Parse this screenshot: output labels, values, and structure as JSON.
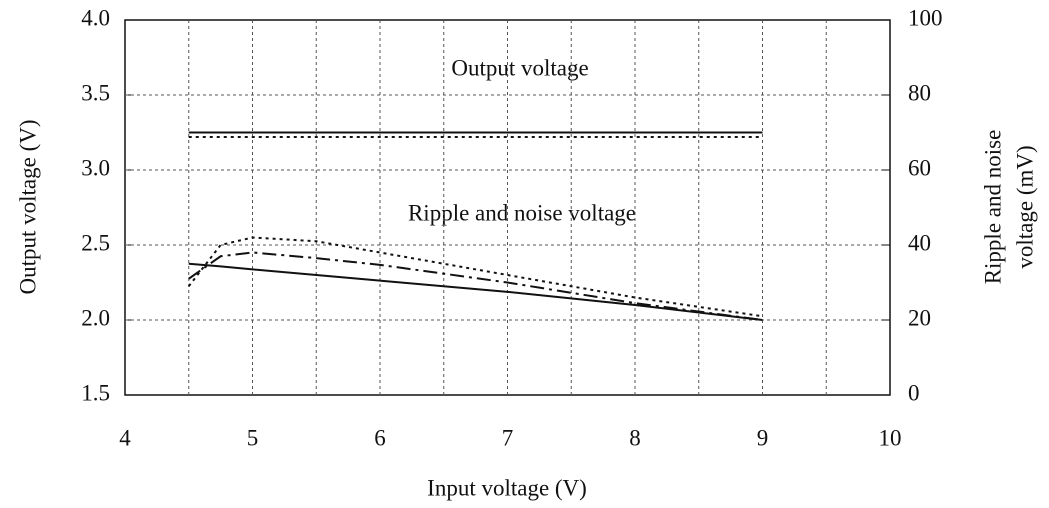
{
  "chart_data": {
    "type": "line",
    "xlabel": "Input voltage (V)",
    "ylabel": "Output voltage (V)",
    "y2label": [
      "Ripple and noise",
      "voltage (mV)"
    ],
    "annotations": [
      "Output voltage",
      "Ripple and noise voltage"
    ],
    "x": [
      4.5,
      4.75,
      5,
      5.5,
      6,
      7,
      8,
      9
    ],
    "xlim": [
      4,
      10
    ],
    "xticks": [
      4,
      5,
      6,
      7,
      8,
      9,
      10
    ],
    "xminorticks": [
      4.5,
      5.5,
      6.5,
      7.5,
      8.5,
      9.5
    ],
    "ylim": [
      1.5,
      4.0
    ],
    "yticks": [
      1.5,
      {
        "value": 2,
        "label": "2.0"
      },
      2.5,
      {
        "value": 3,
        "label": "3.0"
      },
      3.5,
      {
        "value": 4,
        "label": "4.0"
      }
    ],
    "y2lim": [
      0,
      100
    ],
    "y2ticks": [
      0,
      20,
      40,
      60,
      80,
      100
    ],
    "grid": true,
    "series": [
      {
        "color": "#111111",
        "dash": "solid",
        "values": [
          3.25,
          3.25,
          3.25,
          3.25,
          3.25,
          3.25,
          3.25,
          3.25
        ]
      },
      {
        "color": "#111111",
        "dash": "dotted",
        "values": [
          3.22,
          3.22,
          3.22,
          3.22,
          3.22,
          3.22,
          3.22,
          3.22
        ]
      },
      {
        "color": "#111111",
        "dash": "solid",
        "axis": "y2",
        "values": [
          35,
          34.3,
          33.5,
          32,
          30.5,
          27.5,
          24,
          20
        ]
      },
      {
        "color": "#111111",
        "dash": "dashdot",
        "axis": "y2",
        "values": [
          31,
          37,
          38,
          36.5,
          34.7,
          30,
          24.5,
          20
        ]
      },
      {
        "color": "#111111",
        "dash": "dotted",
        "axis": "y2",
        "values": [
          29,
          40,
          42,
          41,
          38,
          32,
          26,
          21
        ]
      }
    ]
  }
}
